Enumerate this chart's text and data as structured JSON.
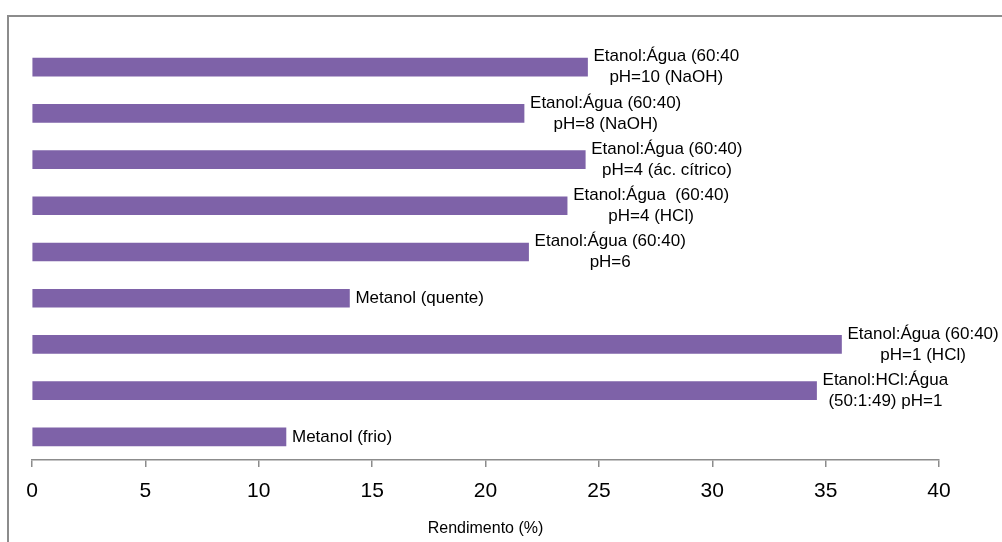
{
  "chart_data": {
    "type": "bar",
    "orientation": "horizontal",
    "xlabel": "Rendimento (%)",
    "categories": [
      "Etanol:Água (60:40\npH=10 (NaOH)",
      "Etanol:Água (60:40)\npH=8 (NaOH)",
      "Etanol:Água (60:40)\npH=4 (ác. cítrico)",
      "Etanol:Água  (60:40)\npH=4 (HCl)",
      "Etanol:Água (60:40)\npH=6",
      "Metanol (quente)",
      "Etanol:Água (60:40)\npH=1 (HCl)",
      "Etanol:HCl:Água\n(50:1:49) pH=1",
      "Metanol (frio)"
    ],
    "values": [
      24.5,
      21.7,
      24.4,
      23.6,
      21.9,
      14.0,
      35.7,
      34.6,
      11.2
    ],
    "color": "#7e62a8",
    "xlim": [
      0,
      40
    ],
    "xticks": [
      0,
      5,
      10,
      15,
      20,
      25,
      30,
      35,
      40
    ]
  }
}
